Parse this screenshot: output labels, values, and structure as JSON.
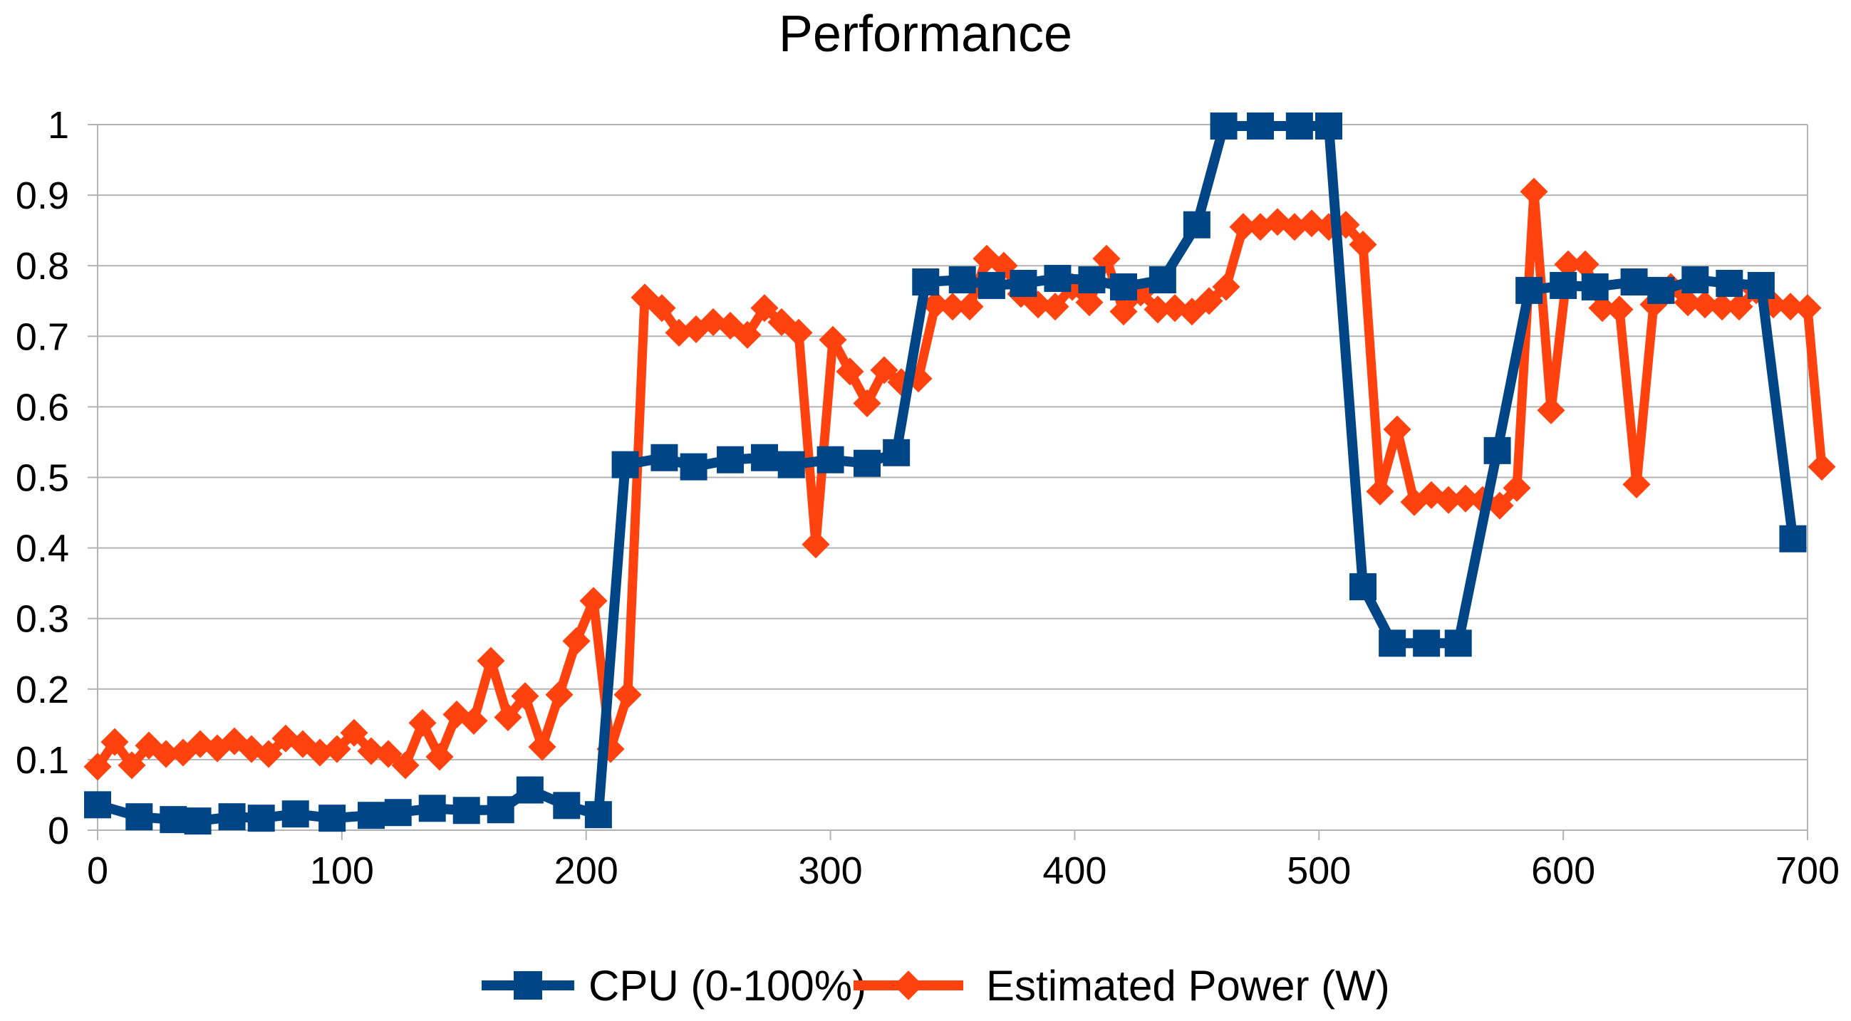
{
  "chart_data": {
    "type": "line",
    "title": "Performance",
    "xlabel": "",
    "ylabel": "",
    "xlim": [
      0,
      700
    ],
    "ylim": [
      0,
      1
    ],
    "x_ticks": [
      0,
      100,
      200,
      300,
      400,
      500,
      600,
      700
    ],
    "y_ticks": [
      0,
      0.1,
      0.2,
      0.3,
      0.4,
      0.5,
      0.6,
      0.7,
      0.8,
      0.9,
      1
    ],
    "grid": "horizontal",
    "legend_position": "bottom",
    "series": [
      {
        "name": "CPU (0-100%)",
        "color": "#004586",
        "marker": "square",
        "points": [
          [
            0,
            0.036
          ],
          [
            17,
            0.019
          ],
          [
            31,
            0.015
          ],
          [
            41,
            0.013
          ],
          [
            55,
            0.019
          ],
          [
            67,
            0.017
          ],
          [
            81,
            0.023
          ],
          [
            96,
            0.017
          ],
          [
            112,
            0.021
          ],
          [
            123,
            0.025
          ],
          [
            137,
            0.031
          ],
          [
            151,
            0.028
          ],
          [
            165,
            0.029
          ],
          [
            177,
            0.057
          ],
          [
            192,
            0.035
          ],
          [
            205,
            0.022
          ],
          [
            216,
            0.518
          ],
          [
            232,
            0.528
          ],
          [
            244,
            0.515
          ],
          [
            259,
            0.525
          ],
          [
            273,
            0.528
          ],
          [
            284,
            0.518
          ],
          [
            300,
            0.525
          ],
          [
            315,
            0.52
          ],
          [
            327,
            0.535
          ],
          [
            339,
            0.777
          ],
          [
            354,
            0.78
          ],
          [
            366,
            0.772
          ],
          [
            379,
            0.775
          ],
          [
            393,
            0.782
          ],
          [
            407,
            0.78
          ],
          [
            420,
            0.77
          ],
          [
            436,
            0.78
          ],
          [
            450,
            0.858
          ],
          [
            461,
            0.998
          ],
          [
            476,
            0.998
          ],
          [
            492,
            0.998
          ],
          [
            504,
            0.998
          ],
          [
            518,
            0.345
          ],
          [
            530,
            0.265
          ],
          [
            544,
            0.265
          ],
          [
            557,
            0.265
          ],
          [
            573,
            0.538
          ],
          [
            586,
            0.765
          ],
          [
            600,
            0.772
          ],
          [
            613,
            0.77
          ],
          [
            629,
            0.777
          ],
          [
            640,
            0.765
          ],
          [
            654,
            0.78
          ],
          [
            668,
            0.775
          ],
          [
            681,
            0.772
          ],
          [
            694,
            0.413
          ]
        ]
      },
      {
        "name": "Estimated Power (W)",
        "color": "#ff420e",
        "marker": "diamond",
        "points": [
          [
            0,
            0.09
          ],
          [
            7,
            0.125
          ],
          [
            14,
            0.092
          ],
          [
            21,
            0.12
          ],
          [
            28,
            0.108
          ],
          [
            35,
            0.11
          ],
          [
            42,
            0.122
          ],
          [
            49,
            0.116
          ],
          [
            56,
            0.126
          ],
          [
            63,
            0.115
          ],
          [
            70,
            0.108
          ],
          [
            77,
            0.13
          ],
          [
            84,
            0.122
          ],
          [
            91,
            0.11
          ],
          [
            98,
            0.115
          ],
          [
            105,
            0.138
          ],
          [
            112,
            0.112
          ],
          [
            119,
            0.108
          ],
          [
            126,
            0.092
          ],
          [
            133,
            0.152
          ],
          [
            140,
            0.104
          ],
          [
            147,
            0.164
          ],
          [
            154,
            0.155
          ],
          [
            161,
            0.24
          ],
          [
            168,
            0.16
          ],
          [
            175,
            0.19
          ],
          [
            182,
            0.118
          ],
          [
            189,
            0.192
          ],
          [
            196,
            0.268
          ],
          [
            203,
            0.325
          ],
          [
            210,
            0.115
          ],
          [
            217,
            0.192
          ],
          [
            224,
            0.755
          ],
          [
            231,
            0.74
          ],
          [
            238,
            0.705
          ],
          [
            245,
            0.71
          ],
          [
            252,
            0.72
          ],
          [
            259,
            0.715
          ],
          [
            266,
            0.702
          ],
          [
            273,
            0.74
          ],
          [
            280,
            0.72
          ],
          [
            287,
            0.705
          ],
          [
            294,
            0.405
          ],
          [
            301,
            0.695
          ],
          [
            308,
            0.65
          ],
          [
            315,
            0.605
          ],
          [
            322,
            0.652
          ],
          [
            329,
            0.635
          ],
          [
            336,
            0.64
          ],
          [
            343,
            0.745
          ],
          [
            350,
            0.742
          ],
          [
            357,
            0.742
          ],
          [
            364,
            0.81
          ],
          [
            371,
            0.8
          ],
          [
            378,
            0.76
          ],
          [
            385,
            0.745
          ],
          [
            392,
            0.742
          ],
          [
            399,
            0.77
          ],
          [
            406,
            0.748
          ],
          [
            413,
            0.81
          ],
          [
            420,
            0.735
          ],
          [
            427,
            0.762
          ],
          [
            434,
            0.738
          ],
          [
            441,
            0.74
          ],
          [
            448,
            0.735
          ],
          [
            455,
            0.75
          ],
          [
            462,
            0.77
          ],
          [
            469,
            0.855
          ],
          [
            476,
            0.855
          ],
          [
            483,
            0.862
          ],
          [
            490,
            0.855
          ],
          [
            497,
            0.86
          ],
          [
            504,
            0.855
          ],
          [
            511,
            0.858
          ],
          [
            518,
            0.83
          ],
          [
            525,
            0.48
          ],
          [
            532,
            0.568
          ],
          [
            539,
            0.465
          ],
          [
            546,
            0.475
          ],
          [
            553,
            0.468
          ],
          [
            560,
            0.47
          ],
          [
            567,
            0.468
          ],
          [
            574,
            0.46
          ],
          [
            581,
            0.485
          ],
          [
            588,
            0.905
          ],
          [
            595,
            0.595
          ],
          [
            602,
            0.802
          ],
          [
            609,
            0.802
          ],
          [
            616,
            0.74
          ],
          [
            623,
            0.738
          ],
          [
            630,
            0.49
          ],
          [
            637,
            0.745
          ],
          [
            644,
            0.77
          ],
          [
            651,
            0.748
          ],
          [
            658,
            0.745
          ],
          [
            665,
            0.742
          ],
          [
            672,
            0.742
          ],
          [
            679,
            0.765
          ],
          [
            686,
            0.745
          ],
          [
            693,
            0.742
          ],
          [
            700,
            0.74
          ],
          [
            707,
            0.515
          ]
        ]
      }
    ]
  }
}
